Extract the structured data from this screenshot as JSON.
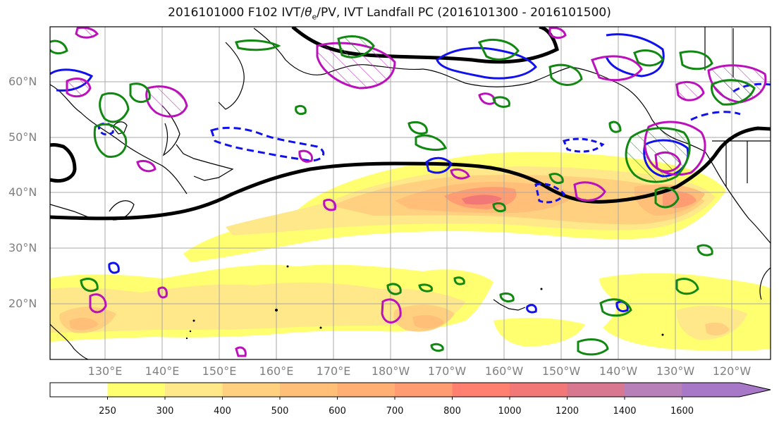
{
  "title": "2016101000 F102 IVT/θe/PV, IVT Landfall PC (2016101300 - 2016101500)",
  "title_parts": {
    "prefix": "2016101000 F102 IVT/",
    "theta": "θ",
    "sub": "e",
    "suffix": "/PV, IVT Landfall PC (2016101300 - 2016101500)"
  },
  "lat_labels": [
    "60°N",
    "50°N",
    "40°N",
    "30°N",
    "20°N"
  ],
  "lon_labels": [
    "130°E",
    "140°E",
    "150°E",
    "160°E",
    "170°E",
    "180°W",
    "170°W",
    "160°W",
    "150°W",
    "140°W",
    "130°W",
    "120°W"
  ],
  "colorbar": {
    "levels": [
      "250",
      "300",
      "400",
      "500",
      "600",
      "700",
      "800",
      "1000",
      "1200",
      "1400",
      "1600"
    ],
    "colors": [
      "#ffffff",
      "#ffff70",
      "#ffe88a",
      "#ffd080",
      "#ffbf78",
      "#ffae74",
      "#ff9c72",
      "#ff8070",
      "#f27878",
      "#d87890",
      "#b880b8",
      "#a878c8"
    ]
  },
  "overlay_colors": {
    "theta_e_contour": "#118811",
    "pv_positive_contour": "#bb11bb",
    "pv_negative_contour": "#1111ee",
    "landfall_pc_line": "#000000"
  }
}
